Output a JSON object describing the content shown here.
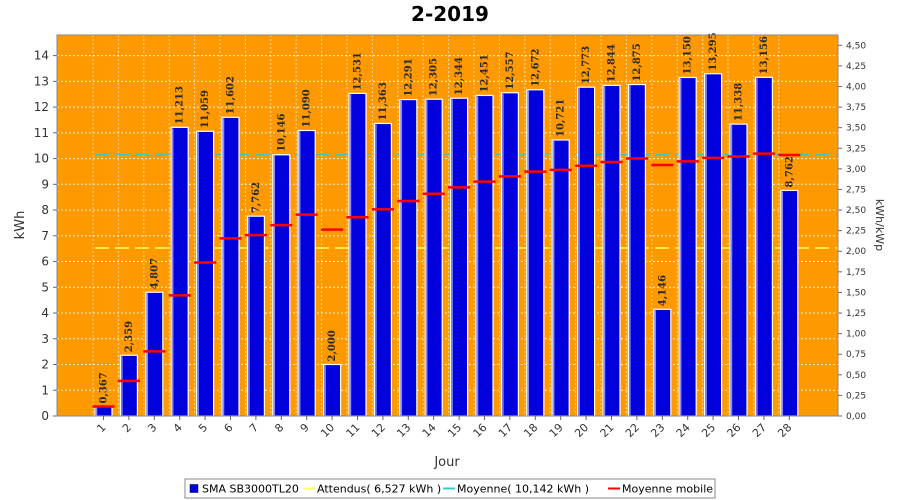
{
  "chart_data": {
    "type": "bar",
    "title": "2-2019",
    "xlabel": "Jour",
    "ylabel": "kWh",
    "y2label": "kWh/kWp",
    "ylim": [
      0,
      14.8
    ],
    "y_ticks": [
      "0",
      "1",
      "2",
      "3",
      "4",
      "5",
      "6",
      "7",
      "8",
      "9",
      "10",
      "11",
      "12",
      "13",
      "14"
    ],
    "y2lim": [
      0,
      4.625
    ],
    "y2_ticks": [
      "0,00",
      "0,25",
      "0,50",
      "0,75",
      "1,00",
      "1,25",
      "1,50",
      "1,75",
      "2,00",
      "2,25",
      "2,50",
      "2,75",
      "3,00",
      "3,25",
      "3,50",
      "3,75",
      "4,00",
      "4,25",
      "4,50"
    ],
    "grid": true,
    "categories": [
      "1",
      "2",
      "3",
      "4",
      "5",
      "6",
      "7",
      "8",
      "9",
      "10",
      "11",
      "12",
      "13",
      "14",
      "15",
      "16",
      "17",
      "18",
      "19",
      "20",
      "21",
      "22",
      "23",
      "24",
      "25",
      "26",
      "27",
      "28"
    ],
    "series": [
      {
        "name": "SMA SB3000TL20",
        "type": "bar",
        "color": "#0000dd",
        "values": [
          0.367,
          2.359,
          4.807,
          11.213,
          11.059,
          11.602,
          7.762,
          10.146,
          11.09,
          2.0,
          12.531,
          11.363,
          12.291,
          12.305,
          12.344,
          12.451,
          12.557,
          12.672,
          10.721,
          12.773,
          12.844,
          12.875,
          4.146,
          13.15,
          13.295,
          11.338,
          13.156,
          8.762
        ],
        "labels": [
          "0,367",
          "2,359",
          "4,807",
          "11,213",
          "11,059",
          "11,602",
          "7,762",
          "10,146",
          "11,090",
          "2,000",
          "12,531",
          "11,363",
          "12,291",
          "12,305",
          "12,344",
          "12,451",
          "12,557",
          "12,672",
          "10,721",
          "12,773",
          "12,844",
          "12,875",
          "4,146",
          "13,150",
          "13,295",
          "11,338",
          "13,156",
          "8,762"
        ]
      },
      {
        "name": "Attendus( 6,527 kWh )",
        "type": "line",
        "color": "#ffff66",
        "values": [
          6.527,
          6.527,
          6.527,
          6.527,
          6.527,
          6.527,
          6.527,
          6.527,
          6.527,
          6.527,
          6.527,
          6.527,
          6.527,
          6.527,
          6.527,
          6.527,
          6.527,
          6.527,
          6.527,
          6.527,
          6.527,
          6.527,
          6.527,
          6.527,
          6.527,
          6.527,
          6.527,
          6.527
        ]
      },
      {
        "name": "Moyenne( 10,142 kWh )",
        "type": "line",
        "color": "#33cccc",
        "values": [
          10.142,
          10.142,
          10.142,
          10.142,
          10.142,
          10.142,
          10.142,
          10.142,
          10.142,
          10.142,
          10.142,
          10.142,
          10.142,
          10.142,
          10.142,
          10.142,
          10.142,
          10.142,
          10.142,
          10.142,
          10.142,
          10.142,
          10.142,
          10.142,
          10.142,
          10.142,
          10.142,
          10.142
        ]
      },
      {
        "name": "Moyenne mobile",
        "type": "marker",
        "color": "#ff0000",
        "values": [
          0.367,
          1.363,
          2.511,
          4.687,
          5.961,
          6.901,
          7.024,
          7.414,
          7.822,
          7.24,
          7.721,
          8.024,
          8.352,
          8.634,
          8.881,
          9.104,
          9.307,
          9.494,
          9.559,
          9.72,
          9.868,
          10.005,
          9.75,
          9.892,
          10.028,
          10.078,
          10.192,
          10.141
        ]
      }
    ],
    "legend": [
      {
        "label": "SMA SB3000TL20",
        "color": "#0000dd",
        "kind": "box"
      },
      {
        "label": "Attendus( 6,527 kWh )",
        "color": "#ffff66",
        "kind": "line"
      },
      {
        "label": "Moyenne( 10,142 kWh )",
        "color": "#33cccc",
        "kind": "line"
      },
      {
        "label": "Moyenne mobile",
        "color": "#ff0000",
        "kind": "line"
      }
    ],
    "legend_position": "bottom-center",
    "colors": {
      "plot_bg": "#ff9900",
      "bar": "#0000dd",
      "grid": "#ffffff"
    }
  }
}
